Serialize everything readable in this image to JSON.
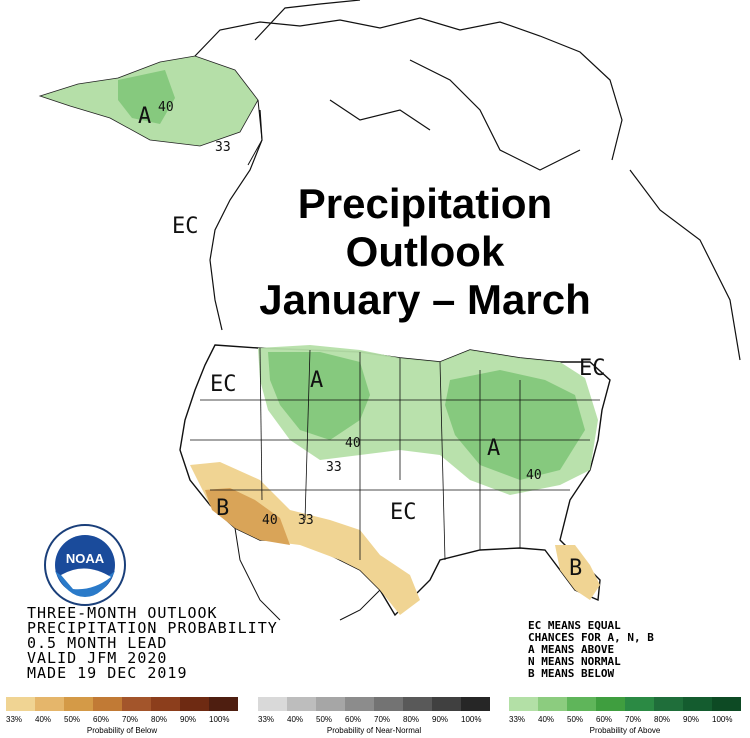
{
  "title": {
    "line1": "Precipitation",
    "line2": "Outlook",
    "line3": "January – March"
  },
  "map_labels": [
    {
      "text": "A"
    },
    {
      "text": "40"
    },
    {
      "text": "33"
    },
    {
      "text": "EC"
    },
    {
      "text": "EC"
    },
    {
      "text": "A"
    },
    {
      "text": "40"
    },
    {
      "text": "33"
    },
    {
      "text": "A"
    },
    {
      "text": "40"
    },
    {
      "text": "EC"
    },
    {
      "text": "EC"
    },
    {
      "text": "B"
    },
    {
      "text": "40"
    },
    {
      "text": "33"
    },
    {
      "text": "B"
    }
  ],
  "info": {
    "line1": "THREE-MONTH OUTLOOK",
    "line2": "PRECIPITATION PROBABILITY",
    "line3": "0.5 MONTH LEAD",
    "line4": "VALID JFM 2020",
    "line5": "MADE 19 DEC 2019"
  },
  "ec_legend": {
    "line1": "EC MEANS EQUAL",
    "line2": "CHANCES FOR A, N, B",
    "line3": "A MEANS ABOVE",
    "line4": "N MEANS NORMAL",
    "line5": "B MEANS BELOW"
  },
  "logo_text": "NOAA",
  "scales": [
    {
      "title": "Probability of Below",
      "ticks": [
        "33%",
        "40%",
        "50%",
        "60%",
        "70%",
        "80%",
        "90%",
        "100%"
      ],
      "colors": [
        "#f0d493",
        "#e5b66b",
        "#d49a47",
        "#c17a35",
        "#a3552b",
        "#8c3e1c",
        "#6e2a12",
        "#4e1e10"
      ]
    },
    {
      "title": "Probability of Near-Normal",
      "ticks": [
        "33%",
        "40%",
        "50%",
        "60%",
        "70%",
        "80%",
        "90%",
        "100%"
      ],
      "colors": [
        "#d9d9d9",
        "#bdbdbd",
        "#a6a6a6",
        "#8c8c8c",
        "#737373",
        "#595959",
        "#404040",
        "#262626"
      ]
    },
    {
      "title": "Probability of Above",
      "ticks": [
        "33%",
        "40%",
        "50%",
        "60%",
        "70%",
        "80%",
        "90%",
        "100%"
      ],
      "colors": [
        "#b3e0a6",
        "#8ccc7f",
        "#5fb55a",
        "#3f9e3f",
        "#2b8a44",
        "#1f6e3a",
        "#145c2f",
        "#0d4a24"
      ]
    }
  ],
  "colors": {
    "above_33": "#b5dfa8",
    "above_40": "#86c97e",
    "below_33": "#f0d493",
    "below_40": "#d9a458",
    "border": "#222222"
  }
}
